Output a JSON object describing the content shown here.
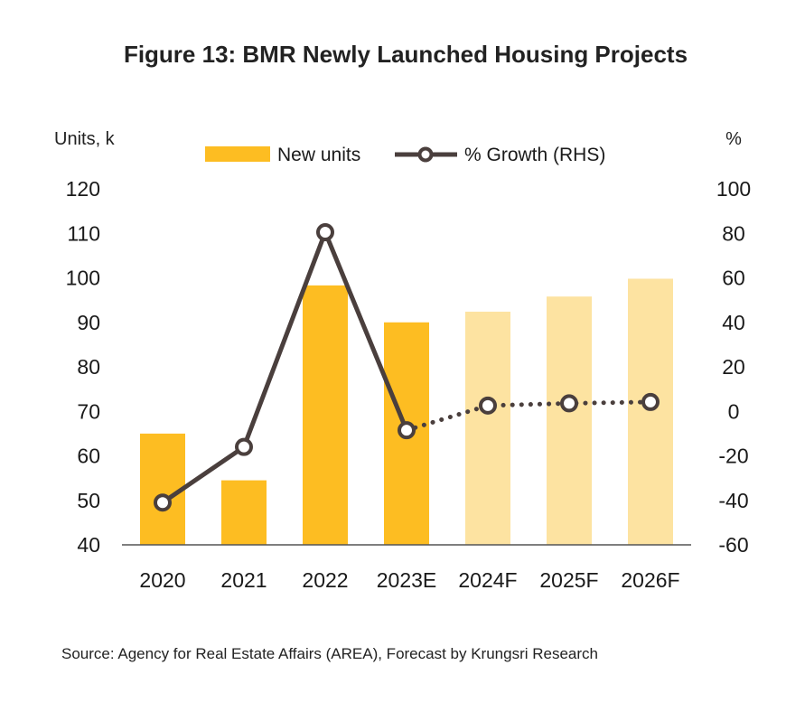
{
  "chart_data": {
    "type": "bar",
    "title": "Figure 13: BMR Newly Launched Housing Projects",
    "categories": [
      "2020",
      "2021",
      "2022",
      "2023E",
      "2024F",
      "2025F",
      "2026F"
    ],
    "ylabel_left": "Units, k",
    "ylabel_right": "%",
    "ylim_left": [
      40,
      120
    ],
    "ylim_right": [
      -60,
      100
    ],
    "yticks_left": [
      "120",
      "110",
      "100",
      "90",
      "80",
      "70",
      "60",
      "50",
      "40"
    ],
    "yticks_right": [
      "100",
      "80",
      "60",
      "40",
      "20",
      "0",
      "-20",
      "-40",
      "-60"
    ],
    "legend_position": "top-center",
    "grid": false,
    "series": [
      {
        "name": "New units",
        "type": "bar",
        "axis": "left",
        "values": [
          65,
          54.5,
          98.3,
          90,
          92.4,
          95.8,
          99.8
        ],
        "forecast": [
          false,
          false,
          false,
          false,
          true,
          true,
          true
        ],
        "color": "#FDBD22",
        "forecast_color": "#FDE3A1"
      },
      {
        "name": "% Growth (RHS)",
        "type": "line",
        "axis": "right",
        "values": [
          -41,
          -16,
          80.5,
          -8.5,
          2.6,
          3.6,
          4.2
        ],
        "forecast_from_index": 3,
        "color": "#4A3F3D"
      }
    ],
    "source": "Source: Agency for Real Estate Affairs (AREA), Forecast by Krungsri Research"
  }
}
